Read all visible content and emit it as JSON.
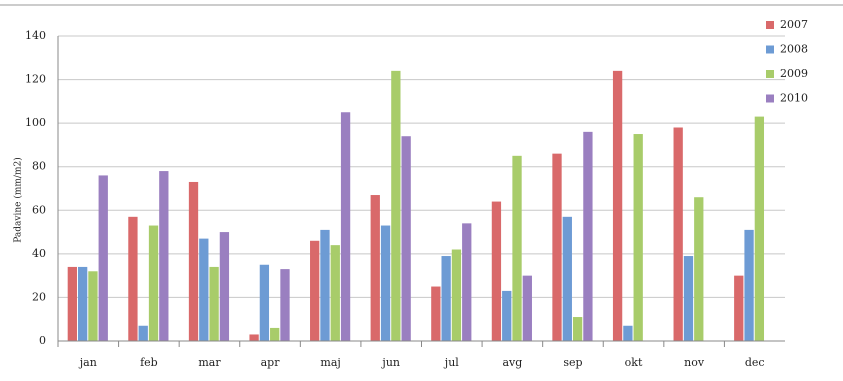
{
  "chart_data": {
    "type": "bar",
    "y_label": "Padavine (mm/m2)",
    "categories": [
      "jan",
      "feb",
      "mar",
      "apr",
      "maj",
      "jun",
      "jul",
      "avg",
      "sep",
      "okt",
      "nov",
      "dec"
    ],
    "series": [
      {
        "name": "2007",
        "color": "#d9696a",
        "values": [
          34,
          57,
          73,
          3,
          46,
          67,
          25,
          64,
          86,
          124,
          98,
          30
        ]
      },
      {
        "name": "2008",
        "color": "#6d9bd4",
        "values": [
          34,
          7,
          47,
          35,
          51,
          53,
          39,
          23,
          57,
          7,
          39,
          51
        ]
      },
      {
        "name": "2009",
        "color": "#a8cc6a",
        "values": [
          32,
          53,
          34,
          6,
          44,
          124,
          42,
          85,
          11,
          95,
          66,
          103
        ]
      },
      {
        "name": "2010",
        "color": "#9a7fc0",
        "values": [
          76,
          78,
          50,
          33,
          105,
          94,
          54,
          30,
          96,
          null,
          null,
          null
        ]
      }
    ],
    "ylim": [
      0,
      140
    ],
    "yticks": [
      0,
      20,
      40,
      60,
      80,
      100,
      120,
      140
    ],
    "grid": true,
    "legend": "right"
  }
}
